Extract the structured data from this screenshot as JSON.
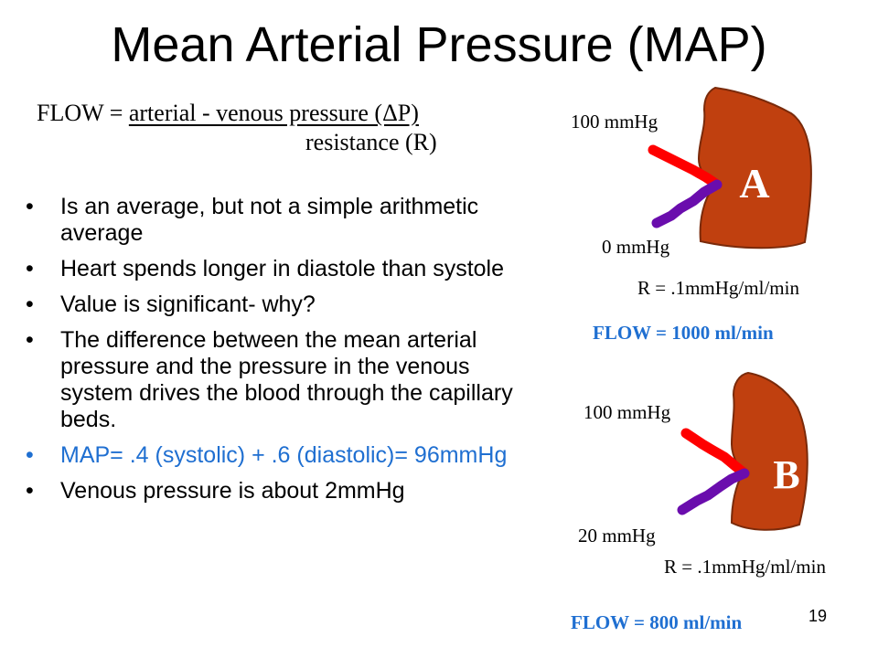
{
  "slide": {
    "title": "Mean Arterial Pressure (MAP)",
    "page_number": "19"
  },
  "formula": {
    "lhs": "FLOW = ",
    "numerator": "arterial  - venous pressure (ΔP)",
    "denominator": "resistance  (R)"
  },
  "bullets": [
    {
      "text": "Is an average, but not a simple arithmetic average",
      "color": "#000000"
    },
    {
      "text": "Heart spends longer in diastole than systole",
      "color": "#000000"
    },
    {
      "text": "Value is significant- why?",
      "color": "#000000"
    },
    {
      "text": "The difference between the mean arterial pressure and the pressure in the venous system drives the blood through the capillary beds.",
      "color": "#000000"
    },
    {
      "text": "MAP= .4 (systolic) + .6 (diastolic)= 96mmHg",
      "color": "#1f6fd1"
    },
    {
      "text": "Venous pressure is about 2mmHg",
      "color": "#000000"
    }
  ],
  "bullet_glyph": "•",
  "diagram_a": {
    "letter": "A",
    "arterial_pressure": "100 mmHg",
    "venous_pressure": "0 mmHg",
    "resistance": "R = .1mmHg/ml/min",
    "flow": "FLOW = 1000 ml/min"
  },
  "diagram_b": {
    "letter": "B",
    "arterial_pressure": "100 mmHg",
    "venous_pressure": "20 mmHg",
    "resistance": "R = .1mmHg/ml/min",
    "flow": "FLOW = 800 ml/min"
  },
  "colors": {
    "organ_fill": "#c0400f",
    "organ_stroke": "#7a2a0a",
    "artery": "#ff0000",
    "vein": "#6a0dad",
    "flow_text": "#1f6fd1",
    "blue_bullet": "#1f6fd1"
  }
}
